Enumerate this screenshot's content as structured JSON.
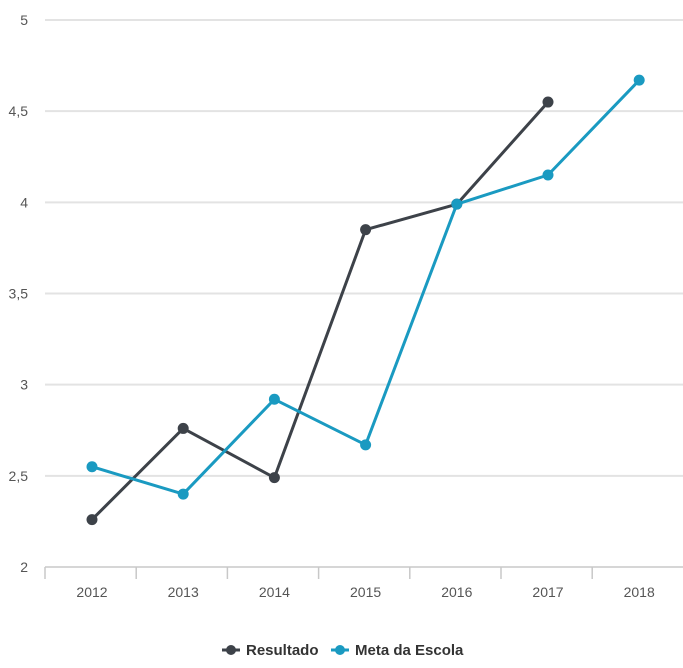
{
  "chart_data": {
    "type": "line",
    "categories": [
      "2012",
      "2013",
      "2014",
      "2015",
      "2016",
      "2017",
      "2018"
    ],
    "ylim": [
      2,
      5
    ],
    "y_ticks": [
      2,
      2.5,
      3,
      3.5,
      4,
      4.5,
      5
    ],
    "y_tick_labels": [
      "2",
      "2,5",
      "3",
      "3,5",
      "4",
      "4,5",
      "5"
    ],
    "grid": true,
    "legend_position": "bottom-center",
    "series": [
      {
        "name": "Resultado",
        "color": "#3d4249",
        "values": [
          2.26,
          2.76,
          2.49,
          3.85,
          3.99,
          4.55,
          null
        ]
      },
      {
        "name": "Meta da Escola",
        "color": "#1a9ac1",
        "values": [
          2.55,
          2.4,
          2.92,
          2.67,
          3.99,
          4.15,
          4.67
        ]
      }
    ]
  }
}
